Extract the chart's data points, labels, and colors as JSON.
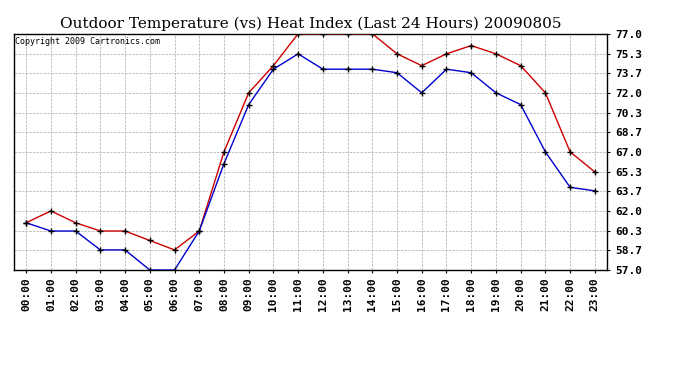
{
  "title": "Outdoor Temperature (vs) Heat Index (Last 24 Hours) 20090805",
  "copyright": "Copyright 2009 Cartronics.com",
  "hours": [
    "00:00",
    "01:00",
    "02:00",
    "03:00",
    "04:00",
    "05:00",
    "06:00",
    "07:00",
    "08:00",
    "09:00",
    "10:00",
    "11:00",
    "12:00",
    "13:00",
    "14:00",
    "15:00",
    "16:00",
    "17:00",
    "18:00",
    "19:00",
    "20:00",
    "21:00",
    "22:00",
    "23:00"
  ],
  "temp": [
    61.0,
    60.3,
    60.3,
    58.7,
    58.7,
    57.0,
    57.0,
    60.3,
    66.0,
    71.0,
    74.0,
    75.3,
    74.0,
    74.0,
    74.0,
    73.7,
    72.0,
    74.0,
    73.7,
    72.0,
    71.0,
    67.0,
    64.0,
    63.7
  ],
  "heat_index": [
    61.0,
    62.0,
    61.0,
    60.3,
    60.3,
    59.5,
    58.7,
    60.3,
    67.0,
    72.0,
    74.3,
    77.0,
    77.0,
    77.0,
    77.0,
    75.3,
    74.3,
    75.3,
    76.0,
    75.3,
    74.3,
    72.0,
    67.0,
    65.3
  ],
  "temp_color": "#0000cc",
  "heat_color": "#cc0000",
  "ylim": [
    57.0,
    77.0
  ],
  "yticks": [
    57.0,
    58.7,
    60.3,
    62.0,
    63.7,
    65.3,
    67.0,
    68.7,
    70.3,
    72.0,
    73.7,
    75.3,
    77.0
  ],
  "bg_color": "#ffffff",
  "grid_color": "#aaaaaa",
  "title_fontsize": 11,
  "copyright_fontsize": 6,
  "tick_fontsize": 8,
  "marker": "+"
}
